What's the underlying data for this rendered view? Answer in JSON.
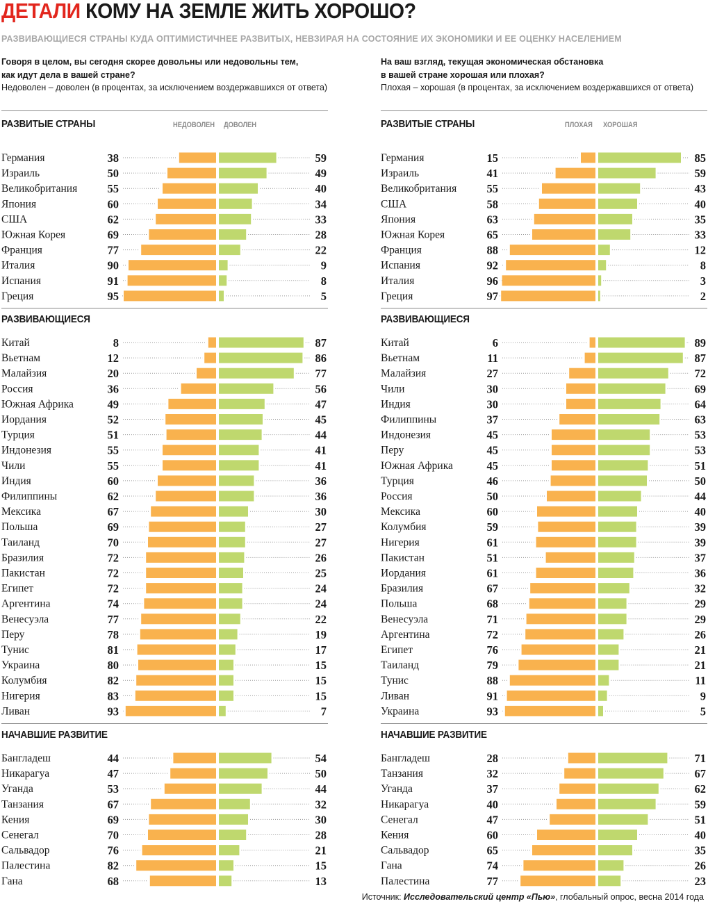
{
  "header": {
    "accent": "ДЕТАЛИ",
    "title": "КОМУ НА ЗЕМЛЕ ЖИТЬ ХОРОШО?",
    "subtitle": "РАЗВИВАЮЩИЕСЯ СТРАНЫ КУДА ОПТИМИСТИЧНЕЕ РАЗВИТЫХ, НЕВЗИРАЯ НА СОСТОЯНИЕ ИХ ЭКОНОМИКИ И ЕЕ ОЦЕНКУ НАСЕЛЕНИЕМ",
    "accent_color": "#e2261d"
  },
  "left_question": {
    "line1": "Говоря в целом, вы сегодня скорее довольны или недовольны тем,",
    "line2": "как идут дела в вашей стране?",
    "note": "Недоволен – доволен (в процентах, за исключением воздержавшихся от ответа)"
  },
  "right_question": {
    "line1": "На ваш взгляд, текущая экономическая обстановка",
    "line2": "в вашей стране хорошая или плохая?",
    "note": "Плохая – хорошая (в процентах, за исключением воздержавшихся от ответа)"
  },
  "legend": {
    "left_neg": "НЕДОВОЛЕН",
    "left_pos": "ДОВОЛЕН",
    "right_neg": "ПЛОХАЯ",
    "right_pos": "ХОРОШАЯ"
  },
  "sections": {
    "developed": "РАЗВИТЫЕ СТРАНЫ",
    "developing": "РАЗВИВАЮЩИЕСЯ",
    "emerging": "НАЧАВШИЕ РАЗВИТИЕ"
  },
  "colors": {
    "negative": "#f9b24e",
    "positive": "#bfd86e"
  },
  "source": {
    "prefix": "Источник: ",
    "name": "Исследовательский центр «Пью»",
    "suffix": ", глобальный опрос, весна 2014 года"
  },
  "chart_data": [
    {
      "type": "bar",
      "title": "Говоря в целом, вы сегодня скорее довольны или недовольны тем, как идут дела в вашей стране?",
      "series_names": [
        "недоволен",
        "доволен"
      ],
      "groups": [
        {
          "name": "РАЗВИТЫЕ СТРАНЫ",
          "rows": [
            [
              "Германия",
              38,
              59
            ],
            [
              "Израиль",
              50,
              49
            ],
            [
              "Великобритания",
              55,
              40
            ],
            [
              "Япония",
              60,
              34
            ],
            [
              "США",
              62,
              33
            ],
            [
              "Южная Корея",
              69,
              28
            ],
            [
              "Франция",
              77,
              22
            ],
            [
              "Италия",
              90,
              9
            ],
            [
              "Испания",
              91,
              8
            ],
            [
              "Греция",
              95,
              5
            ]
          ]
        },
        {
          "name": "РАЗВИВАЮЩИЕСЯ",
          "rows": [
            [
              "Китай",
              8,
              87
            ],
            [
              "Вьетнам",
              12,
              86
            ],
            [
              "Малайзия",
              20,
              77
            ],
            [
              "Россия",
              36,
              56
            ],
            [
              "Южная Африка",
              49,
              47
            ],
            [
              "Иордания",
              52,
              45
            ],
            [
              "Турция",
              51,
              44
            ],
            [
              "Индонезия",
              55,
              41
            ],
            [
              "Чили",
              55,
              41
            ],
            [
              "Индия",
              60,
              36
            ],
            [
              "Филиппины",
              62,
              36
            ],
            [
              "Мексика",
              67,
              30
            ],
            [
              "Польша",
              69,
              27
            ],
            [
              "Таиланд",
              70,
              27
            ],
            [
              "Бразилия",
              72,
              26
            ],
            [
              "Пакистан",
              72,
              25
            ],
            [
              "Египет",
              72,
              24
            ],
            [
              "Аргентина",
              74,
              24
            ],
            [
              "Венесуэла",
              77,
              22
            ],
            [
              "Перу",
              78,
              19
            ],
            [
              "Тунис",
              81,
              17
            ],
            [
              "Украина",
              80,
              15
            ],
            [
              "Колумбия",
              82,
              15
            ],
            [
              "Нигерия",
              83,
              15
            ],
            [
              "Ливан",
              93,
              7
            ]
          ]
        },
        {
          "name": "НАЧАВШИЕ РАЗВИТИЕ",
          "rows": [
            [
              "Бангладеш",
              44,
              54
            ],
            [
              "Никарагуа",
              47,
              50
            ],
            [
              "Уганда",
              53,
              44
            ],
            [
              "Танзания",
              67,
              32
            ],
            [
              "Кения",
              69,
              30
            ],
            [
              "Сенегал",
              70,
              28
            ],
            [
              "Сальвадор",
              76,
              21
            ],
            [
              "Палестина",
              82,
              15
            ],
            [
              "Гана",
              68,
              13
            ]
          ]
        }
      ]
    },
    {
      "type": "bar",
      "title": "На ваш взгляд, текущая экономическая обстановка в вашей стране хорошая или плохая?",
      "series_names": [
        "плохая",
        "хорошая"
      ],
      "groups": [
        {
          "name": "РАЗВИТЫЕ СТРАНЫ",
          "rows": [
            [
              "Германия",
              15,
              85
            ],
            [
              "Израиль",
              41,
              59
            ],
            [
              "Великобритания",
              55,
              43
            ],
            [
              "США",
              58,
              40
            ],
            [
              "Япония",
              63,
              35
            ],
            [
              "Южная Корея",
              65,
              33
            ],
            [
              "Франция",
              88,
              12
            ],
            [
              "Испания",
              92,
              8
            ],
            [
              "Италия",
              96,
              3
            ],
            [
              "Греция",
              97,
              2
            ]
          ]
        },
        {
          "name": "РАЗВИВАЮЩИЕСЯ",
          "rows": [
            [
              "Китай",
              6,
              89
            ],
            [
              "Вьетнам",
              11,
              87
            ],
            [
              "Малайзия",
              27,
              72
            ],
            [
              "Чили",
              30,
              69
            ],
            [
              "Индия",
              30,
              64
            ],
            [
              "Филиппины",
              37,
              63
            ],
            [
              "Индонезия",
              45,
              53
            ],
            [
              "Перу",
              45,
              53
            ],
            [
              "Южная Африка",
              45,
              51
            ],
            [
              "Турция",
              46,
              50
            ],
            [
              "Россия",
              50,
              44
            ],
            [
              "Мексика",
              60,
              40
            ],
            [
              "Колумбия",
              59,
              39
            ],
            [
              "Нигерия",
              61,
              39
            ],
            [
              "Пакистан",
              51,
              37
            ],
            [
              "Иордания",
              61,
              36
            ],
            [
              "Бразилия",
              67,
              32
            ],
            [
              "Польша",
              68,
              29
            ],
            [
              "Венесуэла",
              71,
              29
            ],
            [
              "Аргентина",
              72,
              26
            ],
            [
              "Египет",
              76,
              21
            ],
            [
              "Таиланд",
              79,
              21
            ],
            [
              "Тунис",
              88,
              11
            ],
            [
              "Ливан",
              91,
              9
            ],
            [
              "Украина",
              93,
              5
            ]
          ]
        },
        {
          "name": "НАЧАВШИЕ РАЗВИТИЕ",
          "rows": [
            [
              "Бангладеш",
              28,
              71
            ],
            [
              "Танзания",
              32,
              67
            ],
            [
              "Уганда",
              37,
              62
            ],
            [
              "Никарагуа",
              40,
              59
            ],
            [
              "Сенегал",
              47,
              51
            ],
            [
              "Кения",
              60,
              40
            ],
            [
              "Сальвадор",
              65,
              35
            ],
            [
              "Гана",
              74,
              26
            ],
            [
              "Палестина",
              77,
              23
            ]
          ]
        }
      ]
    }
  ]
}
